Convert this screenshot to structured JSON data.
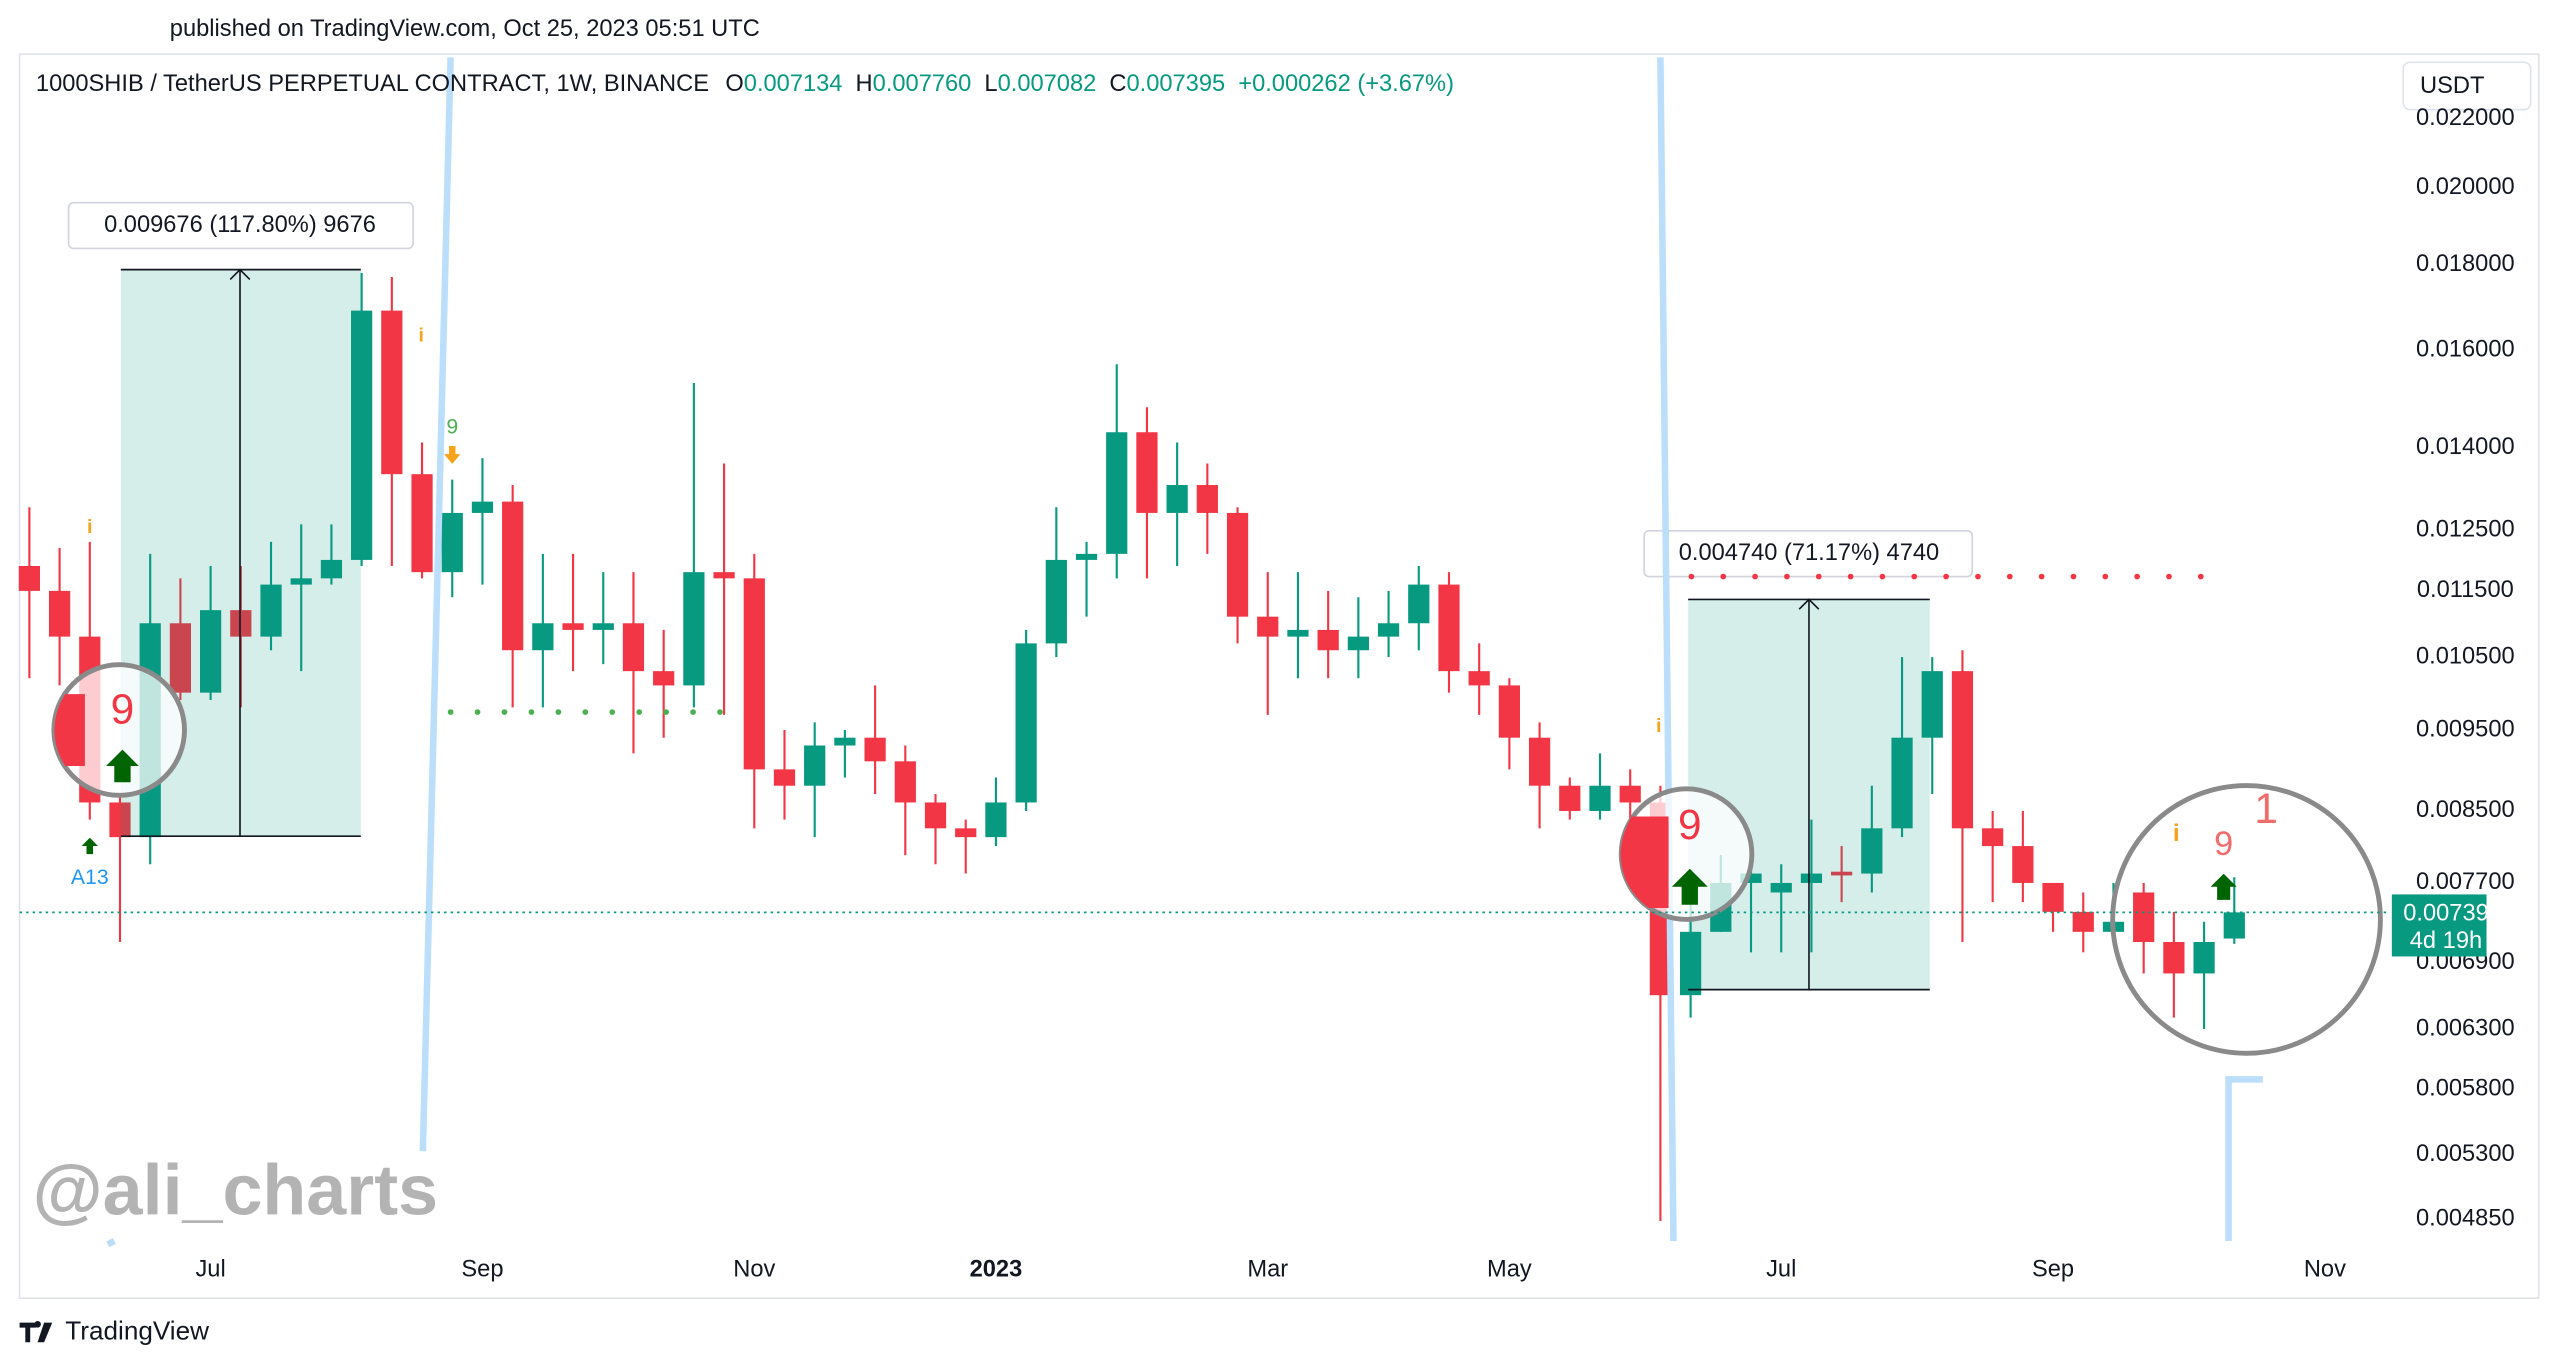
{
  "header": {
    "published": "published on TradingView.com, Oct 25, 2023 05:51 UTC"
  },
  "chart_data": {
    "type": "candlestick",
    "title": "1000SHIB / TetherUS PERPETUAL CONTRACT, 1W, BINANCE",
    "ohlc_legend": [
      {
        "key": "O",
        "value": "0.007134"
      },
      {
        "key": "H",
        "value": "0.007760"
      },
      {
        "key": "L",
        "value": "0.007082"
      },
      {
        "key": "C",
        "value": "0.007395"
      }
    ],
    "change": "+0.000262 (+3.67%)",
    "currency": "USDT",
    "categories": [
      null,
      null,
      null,
      null,
      null,
      null,
      "Jul",
      null,
      null,
      null,
      null,
      null,
      null,
      null,
      null,
      "Sep",
      null,
      null,
      null,
      null,
      null,
      null,
      null,
      null,
      "Nov",
      null,
      null,
      null,
      null,
      null,
      null,
      null,
      "2023",
      null,
      null,
      null,
      null,
      null,
      null,
      null,
      null,
      "Mar",
      null,
      null,
      null,
      null,
      null,
      null,
      null,
      "May",
      null,
      null,
      null,
      null,
      null,
      null,
      null,
      null,
      "Jul",
      null,
      null,
      null,
      null,
      null,
      null,
      null,
      null,
      "Sep",
      null,
      null,
      null,
      null,
      null,
      null,
      null,
      null,
      "Nov"
    ],
    "open": [
      0.0119,
      0.0115,
      0.0108,
      0.0086,
      0.0082,
      0.011,
      0.01,
      0.0112,
      0.0108,
      0.0116,
      0.0117,
      0.012,
      0.0169,
      0.0135,
      0.0118,
      0.0128,
      0.013,
      0.0106,
      0.011,
      0.0109,
      0.011,
      0.0103,
      0.0101,
      0.0118,
      0.0117,
      0.009,
      0.0088,
      0.0093,
      0.0094,
      0.0091,
      0.0086,
      0.0083,
      0.0082,
      0.0086,
      0.0107,
      0.012,
      0.0121,
      0.0143,
      0.0128,
      0.0133,
      0.0128,
      0.0111,
      0.0108,
      0.0109,
      0.0106,
      0.0108,
      0.011,
      0.0116,
      0.0103,
      0.0101,
      0.0094,
      0.0088,
      0.0085,
      0.0088,
      0.0086,
      0.0066,
      0.0072,
      0.0077,
      0.0076,
      0.0077,
      0.00782,
      0.0078,
      0.0083,
      0.0094,
      0.0103,
      0.0083,
      0.0081,
      0.0077,
      0.0074,
      0.0072,
      0.0076,
      0.0071,
      0.0068,
      0.007134,
      null,
      null,
      null
    ],
    "high": [
      0.0129,
      0.0122,
      0.0123,
      0.0087,
      0.0121,
      0.0117,
      0.0119,
      0.0119,
      0.0123,
      0.0126,
      0.0126,
      0.0178,
      0.0177,
      0.0141,
      0.0134,
      0.0138,
      0.0133,
      0.0121,
      0.0121,
      0.0118,
      0.0118,
      0.0109,
      0.0153,
      0.0137,
      0.0121,
      0.0095,
      0.0096,
      0.0095,
      0.0101,
      0.0093,
      0.0087,
      0.0084,
      0.0089,
      0.0109,
      0.0129,
      0.0123,
      0.0157,
      0.0148,
      0.0141,
      0.0137,
      0.0129,
      0.0118,
      0.0118,
      0.0115,
      0.0114,
      0.0115,
      0.0119,
      0.0118,
      0.0107,
      0.0102,
      0.0096,
      0.0089,
      0.0092,
      0.009,
      0.0088,
      0.0076,
      0.008,
      0.0081,
      0.0079,
      0.0084,
      0.0081,
      0.0088,
      0.0105,
      0.0105,
      0.0106,
      0.0085,
      0.0085,
      0.0077,
      0.0076,
      0.0077,
      0.0077,
      0.0074,
      0.0073,
      0.00776,
      null,
      null,
      null
    ],
    "low": [
      0.0102,
      0.0101,
      0.0084,
      0.0071,
      0.0079,
      0.0099,
      0.0099,
      0.0098,
      0.0106,
      0.0103,
      0.0116,
      0.0119,
      0.0119,
      0.0117,
      0.0114,
      0.0116,
      0.0098,
      0.0098,
      0.0103,
      0.0104,
      0.0092,
      0.0094,
      0.0098,
      0.0097,
      0.0083,
      0.0084,
      0.0082,
      0.0089,
      0.0087,
      0.008,
      0.0079,
      0.0078,
      0.0081,
      0.0085,
      0.0105,
      0.0111,
      0.0117,
      0.0117,
      0.0119,
      0.0121,
      0.0107,
      0.0097,
      0.0102,
      0.0102,
      0.0102,
      0.0105,
      0.0106,
      0.01,
      0.0097,
      0.009,
      0.0083,
      0.0084,
      0.0084,
      0.0083,
      0.00484,
      0.0064,
      0.0072,
      0.007,
      0.007,
      0.007,
      0.0075,
      0.0076,
      0.0082,
      0.0087,
      0.0071,
      0.0075,
      0.0075,
      0.0072,
      0.007,
      0.0071,
      0.0068,
      0.0064,
      0.0063,
      0.007082,
      null,
      null,
      null
    ],
    "close": [
      0.0115,
      0.0108,
      0.0086,
      0.0082,
      0.011,
      0.01,
      0.0112,
      0.0108,
      0.0116,
      0.0117,
      0.012,
      0.0169,
      0.0135,
      0.0118,
      0.0128,
      0.013,
      0.0106,
      0.011,
      0.0109,
      0.011,
      0.0103,
      0.0101,
      0.0118,
      0.0117,
      0.009,
      0.0088,
      0.0093,
      0.0094,
      0.0091,
      0.0086,
      0.0083,
      0.0082,
      0.0086,
      0.0107,
      0.012,
      0.0121,
      0.0143,
      0.0128,
      0.0133,
      0.0128,
      0.0111,
      0.0108,
      0.0109,
      0.0106,
      0.0108,
      0.011,
      0.0116,
      0.0103,
      0.0101,
      0.0094,
      0.0088,
      0.0085,
      0.0088,
      0.0086,
      0.0066,
      0.0072,
      0.0077,
      0.0078,
      0.0077,
      0.0078,
      0.00778,
      0.0083,
      0.0094,
      0.0103,
      0.0083,
      0.0081,
      0.0077,
      0.0074,
      0.0072,
      0.0073,
      0.0071,
      0.0068,
      0.0071,
      0.007395,
      null,
      null,
      null
    ],
    "up_color": "#089981",
    "down_color": "#f23645",
    "log_scale": true,
    "ylim": [
      0.004656,
      0.02393
    ],
    "yticks": [
      {
        "value": 0.022,
        "label": "0.022000"
      },
      {
        "value": 0.02,
        "label": "0.020000"
      },
      {
        "value": 0.018,
        "label": "0.018000"
      },
      {
        "value": 0.016,
        "label": "0.016000"
      },
      {
        "value": 0.014,
        "label": "0.014000"
      },
      {
        "value": 0.0125,
        "label": "0.012500"
      },
      {
        "value": 0.0115,
        "label": "0.011500"
      },
      {
        "value": 0.0105,
        "label": "0.010500"
      },
      {
        "value": 0.0095,
        "label": "0.009500"
      },
      {
        "value": 0.0085,
        "label": "0.008500"
      },
      {
        "value": 0.0077,
        "label": "0.007700"
      },
      {
        "value": 0.0069,
        "label": "0.006900"
      },
      {
        "value": 0.0063,
        "label": "0.006300"
      },
      {
        "value": 0.0058,
        "label": "0.005800"
      },
      {
        "value": 0.0053,
        "label": "0.005300"
      },
      {
        "value": 0.00485,
        "label": "0.004850"
      }
    ],
    "last_price_countdown": "4d 19h",
    "annotations": {
      "measure_1": "0.009676 (117.80%) 9676",
      "measure_2": "0.004740 (71.17%) 4740",
      "td_labels": [
        "9",
        "9",
        "9",
        "9",
        "1"
      ],
      "signal_label": "A13",
      "info_marks": [
        "i",
        "i",
        "i",
        "i"
      ]
    }
  },
  "watermark": "@ali_charts",
  "footer": "TradingView"
}
